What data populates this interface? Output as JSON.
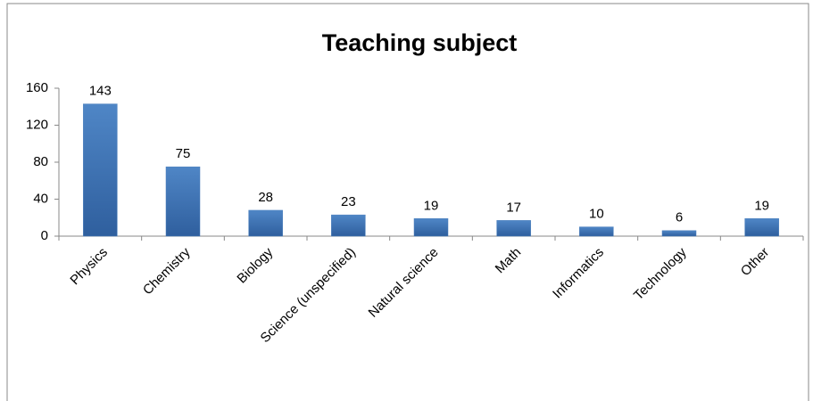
{
  "chart_data": {
    "type": "bar",
    "title": "Teaching subject",
    "categories": [
      "Physics",
      "Chemistry",
      "Biology",
      "Science (unspecified)",
      "Natural science",
      "Math",
      "Informatics",
      "Technology",
      "Other"
    ],
    "values": [
      143,
      75,
      28,
      23,
      19,
      17,
      10,
      6,
      19
    ],
    "color": "#4a7ebb",
    "ylim": [
      0,
      160
    ],
    "yticks": [
      0,
      40,
      80,
      120,
      160
    ],
    "grid": false
  }
}
